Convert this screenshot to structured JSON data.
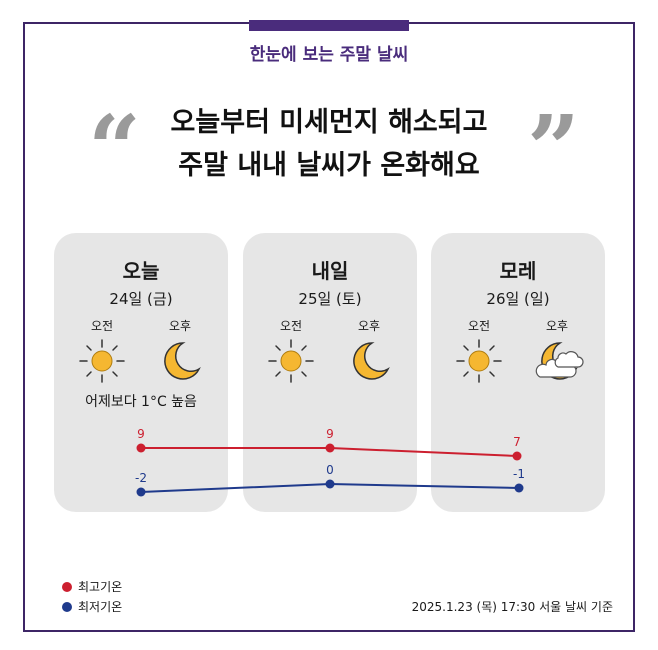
{
  "header": {
    "subtitle": "한눈에 보는 주말 날씨",
    "headline_line1": "오늘부터 미세먼지 해소되고",
    "headline_line2": "주말 내내 날씨가 온화해요",
    "quote_open": "“",
    "quote_close": "”"
  },
  "days": [
    {
      "name": "오늘",
      "date": "24일 (금)",
      "am_label": "오전",
      "pm_label": "오후",
      "am_icon": "sun-icon",
      "pm_icon": "moon-icon",
      "note": "어제보다 1°C 높음"
    },
    {
      "name": "내일",
      "date": "25일 (토)",
      "am_label": "오전",
      "pm_label": "오후",
      "am_icon": "sun-icon",
      "pm_icon": "moon-icon"
    },
    {
      "name": "모레",
      "date": "26일 (일)",
      "am_label": "오전",
      "pm_label": "오후",
      "am_icon": "sun-icon",
      "pm_icon": "moon-cloud-icon"
    }
  ],
  "chart_data": {
    "type": "line",
    "categories": [
      "오늘",
      "내일",
      "모레"
    ],
    "series": [
      {
        "name": "최고기온",
        "values": [
          9,
          9,
          7
        ],
        "color": "#cc1f2f"
      },
      {
        "name": "최저기온",
        "values": [
          -2,
          0,
          -1
        ],
        "color": "#1f3a8c"
      }
    ]
  },
  "legend": {
    "high": "최고기온",
    "low": "최저기온"
  },
  "colors": {
    "accent": "#4a2c7c",
    "high": "#cc1f2f",
    "low": "#1f3a8c",
    "card": "#e6e6e6",
    "sun": "#f5b731"
  },
  "footnote": "2025.1.23 (목) 17:30 서울 날씨 기준"
}
